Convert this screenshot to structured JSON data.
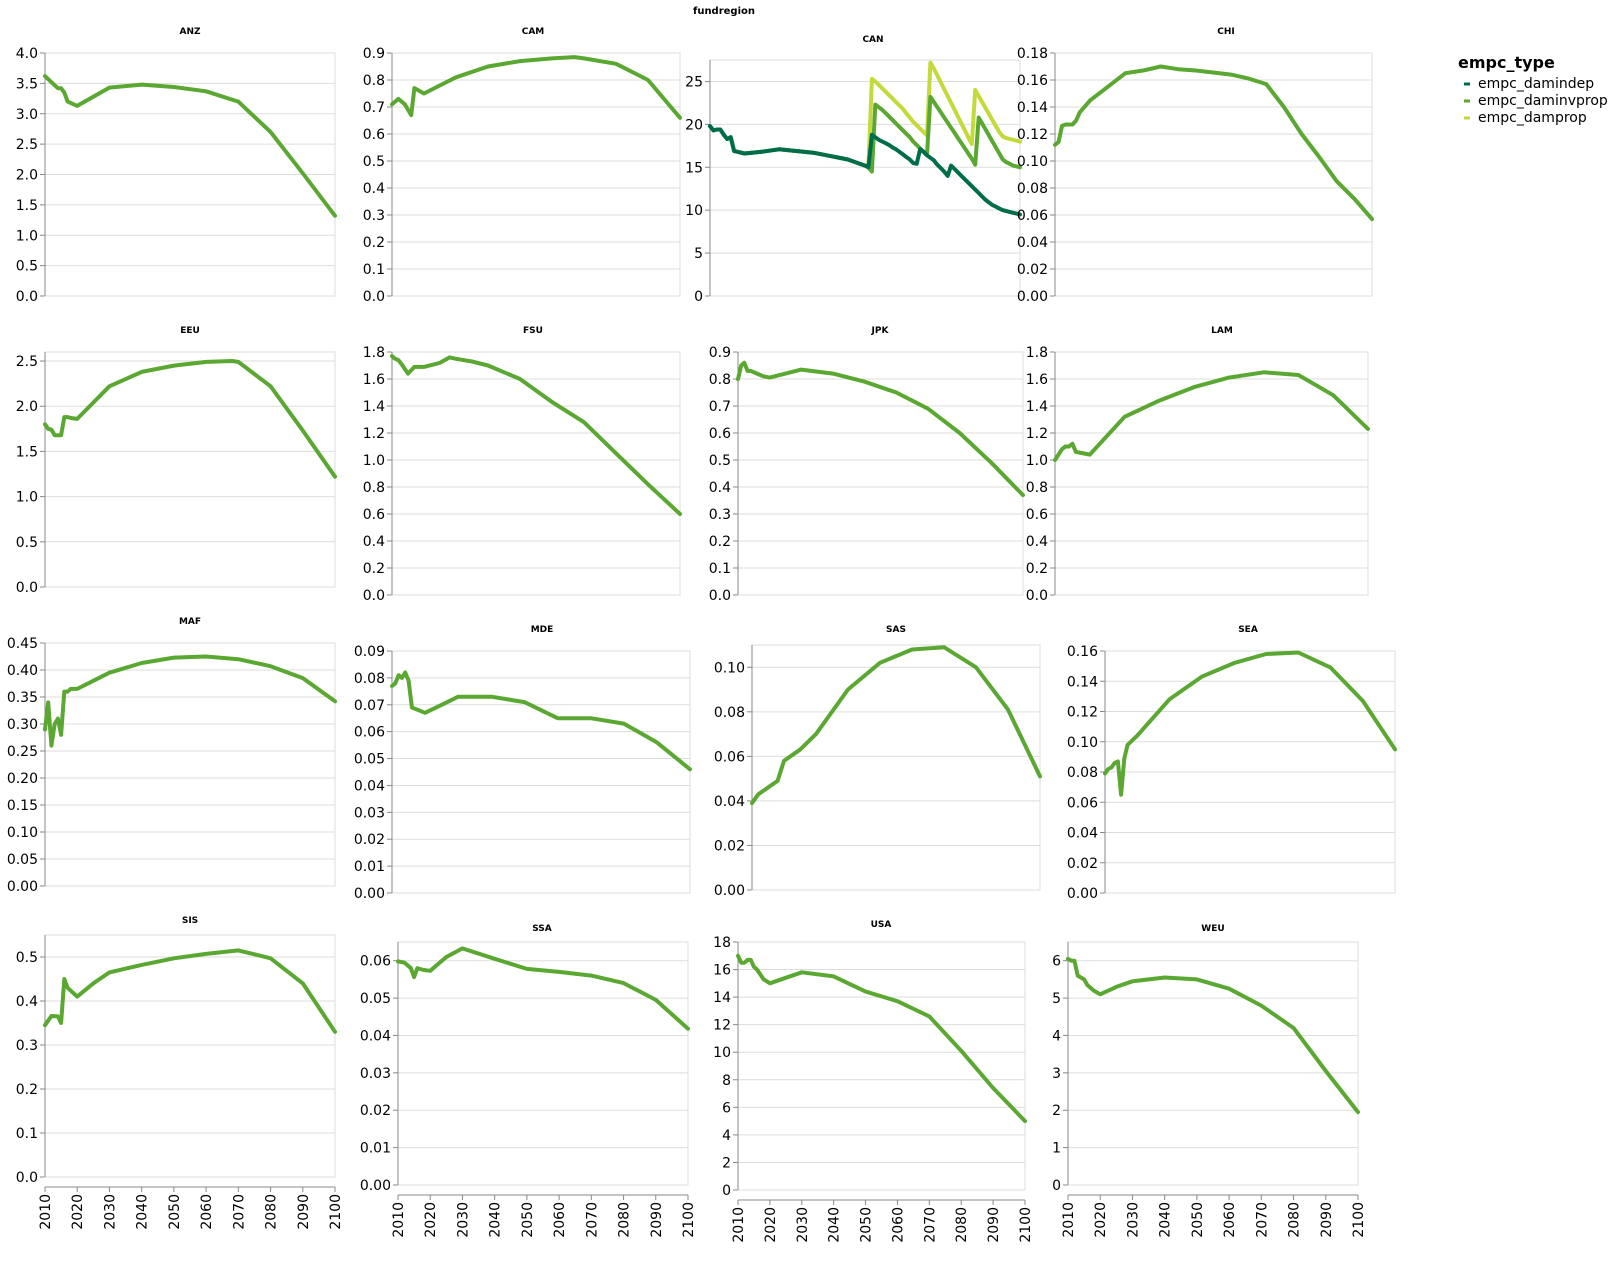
{
  "figure": {
    "facet_title": "fundregion",
    "legend_title": "empc_type",
    "series": [
      {
        "name": "empc_damindep",
        "color": "#006d4a"
      },
      {
        "name": "empc_daminvprop",
        "color": "#5aa832"
      },
      {
        "name": "empc_damprop",
        "color": "#c4d93b"
      }
    ],
    "x_ticks": [
      2010,
      2020,
      2030,
      2040,
      2050,
      2060,
      2070,
      2080,
      2090,
      2100
    ]
  },
  "chart_data": [
    {
      "type": "line",
      "title": "ANZ",
      "ylim": [
        0,
        4
      ],
      "y_ticks": [
        "0.0",
        "0.5",
        "1.0",
        "1.5",
        "2.0",
        "2.5",
        "3.0",
        "3.5",
        "4.0"
      ],
      "x": [
        2010,
        2012,
        2014,
        2015,
        2016,
        2017,
        2020,
        2030,
        2040,
        2050,
        2060,
        2070,
        2080,
        2090,
        2100
      ],
      "series": [
        {
          "values": [
            3.62,
            3.52,
            3.42,
            3.42,
            3.35,
            3.2,
            3.13,
            3.43,
            3.48,
            3.44,
            3.37,
            3.2,
            2.7,
            2.02,
            1.32
          ]
        }
      ]
    },
    {
      "type": "line",
      "title": "CAM",
      "ylim": [
        0,
        0.9
      ],
      "y_ticks": [
        "0.0",
        "0.1",
        "0.2",
        "0.3",
        "0.4",
        "0.5",
        "0.6",
        "0.7",
        "0.8",
        "0.9"
      ],
      "x": [
        2010,
        2012,
        2014,
        2016,
        2017,
        2020,
        2025,
        2030,
        2040,
        2050,
        2060,
        2067,
        2070,
        2080,
        2090,
        2100
      ],
      "series": [
        {
          "values": [
            0.71,
            0.73,
            0.71,
            0.67,
            0.77,
            0.75,
            0.78,
            0.81,
            0.85,
            0.87,
            0.88,
            0.885,
            0.88,
            0.86,
            0.8,
            0.66
          ]
        }
      ]
    },
    {
      "type": "line",
      "title": "CAN",
      "ylim": [
        0,
        27.5
      ],
      "y_ticks": [
        "0",
        "5",
        "10",
        "15",
        "20",
        "25"
      ],
      "x": [
        2010,
        2011,
        2012,
        2013,
        2014,
        2015,
        2016,
        2017,
        2018,
        2020,
        2025,
        2030,
        2035,
        2040,
        2045,
        2050,
        2055,
        2056,
        2057,
        2058,
        2059,
        2060,
        2061,
        2062,
        2063,
        2064,
        2065,
        2066,
        2067,
        2068,
        2069,
        2070,
        2071,
        2072,
        2073,
        2074,
        2075,
        2076,
        2077,
        2078,
        2079,
        2080,
        2081,
        2082,
        2083,
        2084,
        2085,
        2086,
        2087,
        2088,
        2089,
        2090,
        2091,
        2092,
        2093,
        2094,
        2095,
        2096,
        2097,
        2098,
        2099,
        2100
      ],
      "series": [
        {
          "name": "empc_damindep",
          "values": [
            19.8,
            19.3,
            19.4,
            19.4,
            18.8,
            18.3,
            18.5,
            16.9,
            16.8,
            16.6,
            16.8,
            17.1,
            16.9,
            16.7,
            16.3,
            15.9,
            15.2,
            15.0,
            18.8,
            18.5,
            18.2,
            18.0,
            17.8,
            17.6,
            17.3,
            17.1,
            16.8,
            16.5,
            16.2,
            15.9,
            15.5,
            15.4,
            17.1,
            16.8,
            16.4,
            16.1,
            15.8,
            15.3,
            14.9,
            14.5,
            14.0,
            15.2,
            14.8,
            14.4,
            14.0,
            13.6,
            13.2,
            12.8,
            12.4,
            12.0,
            11.6,
            11.2,
            10.9,
            10.6,
            10.4,
            10.2,
            10.0,
            9.9,
            9.8,
            9.7,
            9.6,
            9.5
          ]
        },
        {
          "name": "empc_daminvprop",
          "values": [
            19.8,
            19.3,
            19.4,
            19.4,
            18.8,
            18.3,
            18.5,
            16.9,
            16.8,
            16.6,
            16.8,
            17.1,
            16.9,
            16.7,
            16.3,
            15.9,
            15.2,
            15.0,
            14.5,
            22.3,
            22.0,
            21.7,
            21.3,
            20.9,
            20.5,
            20.1,
            19.7,
            19.3,
            18.9,
            18.5,
            18.0,
            17.6,
            17.2,
            16.8,
            16.4,
            23.2,
            22.6,
            22.0,
            21.4,
            20.8,
            20.2,
            19.6,
            19.0,
            18.4,
            17.8,
            17.2,
            16.6,
            16.0,
            15.3,
            20.8,
            20.1,
            19.4,
            18.7,
            18.0,
            17.3,
            16.6,
            15.9,
            15.6,
            15.4,
            15.2,
            15.1,
            15.0
          ]
        },
        {
          "name": "empc_damprop",
          "values": [
            19.8,
            19.3,
            19.4,
            19.4,
            18.8,
            18.3,
            18.5,
            16.9,
            16.8,
            16.6,
            16.8,
            17.1,
            16.9,
            16.7,
            16.3,
            15.9,
            15.2,
            15.0,
            25.3,
            25.0,
            24.6,
            24.2,
            23.8,
            23.4,
            23.0,
            22.6,
            22.2,
            21.8,
            21.3,
            20.8,
            20.3,
            19.9,
            19.5,
            19.1,
            18.7,
            27.2,
            26.5,
            25.7,
            24.9,
            24.1,
            23.3,
            22.5,
            21.7,
            20.9,
            20.1,
            19.3,
            18.5,
            17.7,
            24.0,
            23.3,
            22.6,
            21.9,
            21.2,
            20.5,
            19.8,
            19.1,
            18.6,
            18.4,
            18.3,
            18.2,
            18.1,
            18.0
          ]
        }
      ]
    },
    {
      "type": "line",
      "title": "CHI",
      "ylim": [
        0,
        0.18
      ],
      "y_ticks": [
        "0.00",
        "0.02",
        "0.04",
        "0.06",
        "0.08",
        "0.10",
        "0.12",
        "0.14",
        "0.16",
        "0.18"
      ],
      "x": [
        2010,
        2011,
        2012,
        2013,
        2015,
        2016,
        2017,
        2020,
        2025,
        2030,
        2035,
        2040,
        2045,
        2050,
        2060,
        2065,
        2070,
        2075,
        2080,
        2085,
        2090,
        2095,
        2100
      ],
      "series": [
        {
          "values": [
            0.112,
            0.114,
            0.126,
            0.127,
            0.127,
            0.13,
            0.136,
            0.145,
            0.155,
            0.165,
            0.167,
            0.17,
            0.168,
            0.167,
            0.164,
            0.161,
            0.157,
            0.14,
            0.12,
            0.103,
            0.085,
            0.072,
            0.057
          ]
        }
      ]
    },
    {
      "type": "line",
      "title": "EEU",
      "ylim": [
        0,
        2.6
      ],
      "y_ticks": [
        "0.0",
        "0.5",
        "1.0",
        "1.5",
        "2.0",
        "2.5"
      ],
      "x": [
        2010,
        2011,
        2012,
        2013,
        2014,
        2015,
        2016,
        2017,
        2018,
        2020,
        2030,
        2040,
        2050,
        2060,
        2068,
        2070,
        2080,
        2090,
        2100
      ],
      "series": [
        {
          "values": [
            1.8,
            1.75,
            1.74,
            1.68,
            1.68,
            1.68,
            1.88,
            1.88,
            1.87,
            1.86,
            2.22,
            2.38,
            2.45,
            2.49,
            2.5,
            2.49,
            2.22,
            1.73,
            1.22
          ]
        }
      ]
    },
    {
      "type": "line",
      "title": "FSU",
      "ylim": [
        0,
        1.8
      ],
      "y_ticks": [
        "0.0",
        "0.2",
        "0.4",
        "0.6",
        "0.8",
        "1.0",
        "1.2",
        "1.4",
        "1.6",
        "1.8"
      ],
      "x": [
        2010,
        2011,
        2012,
        2013,
        2015,
        2017,
        2020,
        2025,
        2028,
        2030,
        2035,
        2040,
        2050,
        2060,
        2070,
        2080,
        2090,
        2100
      ],
      "series": [
        {
          "values": [
            1.77,
            1.75,
            1.74,
            1.71,
            1.64,
            1.69,
            1.69,
            1.72,
            1.76,
            1.75,
            1.73,
            1.7,
            1.6,
            1.43,
            1.28,
            1.05,
            0.82,
            0.6
          ]
        }
      ]
    },
    {
      "type": "line",
      "title": "JPK",
      "ylim": [
        0,
        0.9
      ],
      "y_ticks": [
        "0.0",
        "0.1",
        "0.2",
        "0.3",
        "0.4",
        "0.5",
        "0.6",
        "0.7",
        "0.8",
        "0.9"
      ],
      "x": [
        2010,
        2011,
        2012,
        2013,
        2014,
        2016,
        2018,
        2020,
        2025,
        2030,
        2040,
        2050,
        2060,
        2070,
        2080,
        2090,
        2100
      ],
      "series": [
        {
          "values": [
            0.8,
            0.85,
            0.86,
            0.83,
            0.83,
            0.82,
            0.81,
            0.805,
            0.82,
            0.835,
            0.82,
            0.79,
            0.75,
            0.69,
            0.6,
            0.49,
            0.37
          ]
        }
      ]
    },
    {
      "type": "line",
      "title": "LAM",
      "ylim": [
        0,
        1.8
      ],
      "y_ticks": [
        "0.0",
        "0.2",
        "0.4",
        "0.6",
        "0.8",
        "1.0",
        "1.2",
        "1.4",
        "1.6",
        "1.8"
      ],
      "x": [
        2010,
        2012,
        2013,
        2014,
        2015,
        2016,
        2020,
        2030,
        2040,
        2050,
        2060,
        2070,
        2080,
        2090,
        2100
      ],
      "series": [
        {
          "values": [
            1.0,
            1.08,
            1.1,
            1.1,
            1.12,
            1.06,
            1.04,
            1.32,
            1.44,
            1.54,
            1.61,
            1.65,
            1.63,
            1.48,
            1.23
          ]
        }
      ]
    },
    {
      "type": "line",
      "title": "MAF",
      "ylim": [
        0,
        0.45
      ],
      "y_ticks": [
        "0.00",
        "0.05",
        "0.10",
        "0.15",
        "0.20",
        "0.25",
        "0.30",
        "0.35",
        "0.40",
        "0.45"
      ],
      "x": [
        2010,
        2011,
        2012,
        2013,
        2014,
        2015,
        2016,
        2017,
        2018,
        2020,
        2025,
        2030,
        2040,
        2050,
        2060,
        2070,
        2080,
        2090,
        2100
      ],
      "series": [
        {
          "values": [
            0.29,
            0.34,
            0.26,
            0.3,
            0.31,
            0.28,
            0.36,
            0.36,
            0.365,
            0.365,
            0.38,
            0.395,
            0.413,
            0.423,
            0.425,
            0.42,
            0.407,
            0.385,
            0.342
          ]
        }
      ]
    },
    {
      "type": "line",
      "title": "MDE",
      "ylim": [
        0,
        0.09
      ],
      "y_ticks": [
        "0.00",
        "0.01",
        "0.02",
        "0.03",
        "0.04",
        "0.05",
        "0.06",
        "0.07",
        "0.08",
        "0.09"
      ],
      "x": [
        2010,
        2011,
        2012,
        2013,
        2014,
        2015,
        2016,
        2018,
        2020,
        2025,
        2030,
        2040,
        2050,
        2060,
        2070,
        2080,
        2090,
        2100
      ],
      "series": [
        {
          "values": [
            0.077,
            0.078,
            0.081,
            0.08,
            0.082,
            0.079,
            0.069,
            0.068,
            0.067,
            0.07,
            0.073,
            0.073,
            0.071,
            0.065,
            0.065,
            0.063,
            0.056,
            0.046
          ]
        }
      ]
    },
    {
      "type": "line",
      "title": "SAS",
      "ylim": [
        0,
        0.11
      ],
      "y_ticks": [
        "0.00",
        "0.02",
        "0.04",
        "0.06",
        "0.08",
        "0.10"
      ],
      "x": [
        2010,
        2012,
        2014,
        2016,
        2018,
        2020,
        2025,
        2030,
        2040,
        2050,
        2060,
        2070,
        2080,
        2090,
        2100
      ],
      "series": [
        {
          "values": [
            0.039,
            0.043,
            0.045,
            0.047,
            0.049,
            0.058,
            0.063,
            0.07,
            0.09,
            0.102,
            0.108,
            0.109,
            0.1,
            0.081,
            0.051
          ]
        }
      ]
    },
    {
      "type": "line",
      "title": "SEA",
      "ylim": [
        0,
        0.16
      ],
      "y_ticks": [
        "0.00",
        "0.02",
        "0.04",
        "0.06",
        "0.08",
        "0.10",
        "0.12",
        "0.14",
        "0.16"
      ],
      "x": [
        2010,
        2011,
        2012,
        2013,
        2014,
        2015,
        2016,
        2017,
        2018,
        2020,
        2030,
        2040,
        2050,
        2060,
        2070,
        2080,
        2090,
        2100
      ],
      "series": [
        {
          "values": [
            0.079,
            0.082,
            0.083,
            0.086,
            0.087,
            0.065,
            0.089,
            0.098,
            0.1,
            0.104,
            0.128,
            0.143,
            0.152,
            0.158,
            0.159,
            0.149,
            0.127,
            0.095
          ]
        }
      ]
    },
    {
      "type": "line",
      "title": "SIS",
      "ylim": [
        0,
        0.55
      ],
      "y_ticks": [
        "0.0",
        "0.1",
        "0.2",
        "0.3",
        "0.4",
        "0.5"
      ],
      "x": [
        2010,
        2012,
        2014,
        2015,
        2016,
        2017,
        2020,
        2025,
        2030,
        2040,
        2050,
        2060,
        2070,
        2080,
        2090,
        2100
      ],
      "series": [
        {
          "values": [
            0.345,
            0.366,
            0.365,
            0.35,
            0.45,
            0.43,
            0.41,
            0.44,
            0.465,
            0.482,
            0.497,
            0.507,
            0.515,
            0.497,
            0.44,
            0.33
          ]
        }
      ]
    },
    {
      "type": "line",
      "title": "SSA",
      "ylim": [
        0,
        0.065
      ],
      "y_ticks": [
        "0.00",
        "0.01",
        "0.02",
        "0.03",
        "0.04",
        "0.05",
        "0.06"
      ],
      "x": [
        2010,
        2012,
        2014,
        2015,
        2016,
        2018,
        2020,
        2025,
        2030,
        2040,
        2050,
        2060,
        2070,
        2080,
        2090,
        2100
      ],
      "series": [
        {
          "values": [
            0.0598,
            0.0595,
            0.058,
            0.0556,
            0.058,
            0.0575,
            0.0573,
            0.061,
            0.0633,
            0.0605,
            0.0578,
            0.057,
            0.056,
            0.054,
            0.0495,
            0.0418
          ]
        }
      ]
    },
    {
      "type": "line",
      "title": "USA",
      "ylim": [
        0,
        18
      ],
      "y_ticks": [
        "0",
        "2",
        "4",
        "6",
        "8",
        "10",
        "12",
        "14",
        "16",
        "18"
      ],
      "x": [
        2010,
        2011,
        2012,
        2013,
        2014,
        2015,
        2016,
        2018,
        2020,
        2025,
        2030,
        2040,
        2050,
        2060,
        2070,
        2080,
        2090,
        2100
      ],
      "series": [
        {
          "values": [
            17.0,
            16.5,
            16.5,
            16.7,
            16.7,
            16.2,
            16.0,
            15.3,
            15.0,
            15.4,
            15.8,
            15.5,
            14.4,
            13.7,
            12.6,
            10.1,
            7.4,
            5.0
          ]
        }
      ]
    },
    {
      "type": "line",
      "title": "WEU",
      "ylim": [
        0,
        6.5
      ],
      "y_ticks": [
        "0",
        "1",
        "2",
        "3",
        "4",
        "5",
        "6"
      ],
      "x": [
        2010,
        2011,
        2012,
        2013,
        2014,
        2015,
        2016,
        2018,
        2020,
        2025,
        2030,
        2040,
        2050,
        2060,
        2070,
        2080,
        2090,
        2100
      ],
      "series": [
        {
          "values": [
            6.05,
            6.0,
            6.0,
            5.6,
            5.55,
            5.5,
            5.35,
            5.2,
            5.1,
            5.3,
            5.45,
            5.55,
            5.5,
            5.25,
            4.8,
            4.2,
            3.05,
            1.95
          ]
        }
      ]
    }
  ]
}
